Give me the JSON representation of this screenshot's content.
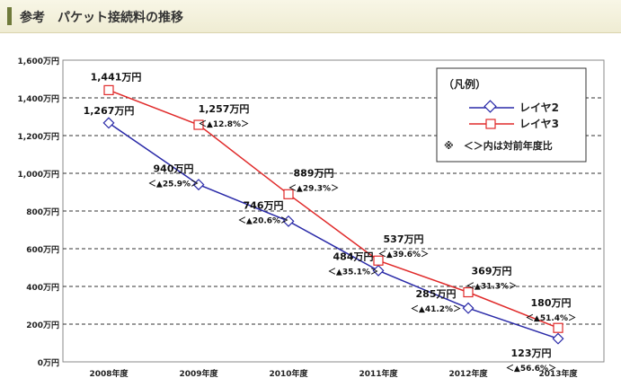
{
  "header": {
    "title": "参考　パケット接続料の推移"
  },
  "legend": {
    "title": "（凡例）",
    "items": [
      "レイヤ2",
      "レイヤ3"
    ],
    "note": "※　＜＞内は対前年度比"
  },
  "colors": {
    "layer2": "#2a2aa8",
    "layer3": "#e02a2a",
    "grid": "#333333"
  },
  "chart_data": {
    "type": "line",
    "title": "",
    "xlabel": "",
    "ylabel": "",
    "categories": [
      "2008年度",
      "2009年度",
      "2010年度",
      "2011年度",
      "2012年度",
      "2013年度"
    ],
    "ylim": [
      0,
      1600
    ],
    "yticks": [
      "0万円",
      "200万円",
      "400万円",
      "600万円",
      "800万円",
      "1,000万円",
      "1,200万円",
      "1,400万円",
      "1,600万円"
    ],
    "grid": true,
    "legend_position": "top-right",
    "series": [
      {
        "name": "レイヤ2",
        "marker": "diamond",
        "values": [
          1267,
          940,
          746,
          484,
          285,
          123
        ],
        "value_labels": [
          "1,267万円",
          "940万円",
          "746万円",
          "484万円",
          "285万円",
          "123万円"
        ],
        "change_labels": [
          "",
          "＜▲25.9%＞",
          "＜▲20.6%＞",
          "＜▲35.1%＞",
          "＜▲41.2%＞",
          "＜▲56.6%＞"
        ]
      },
      {
        "name": "レイヤ3",
        "marker": "square",
        "values": [
          1441,
          1257,
          889,
          537,
          369,
          180
        ],
        "value_labels": [
          "1,441万円",
          "1,257万円",
          "889万円",
          "537万円",
          "369万円",
          "180万円"
        ],
        "change_labels": [
          "",
          "＜▲12.8%＞",
          "＜▲29.3%＞",
          "＜▲39.6%＞",
          "＜▲31.3%＞",
          "＜▲51.4%＞"
        ]
      }
    ]
  }
}
